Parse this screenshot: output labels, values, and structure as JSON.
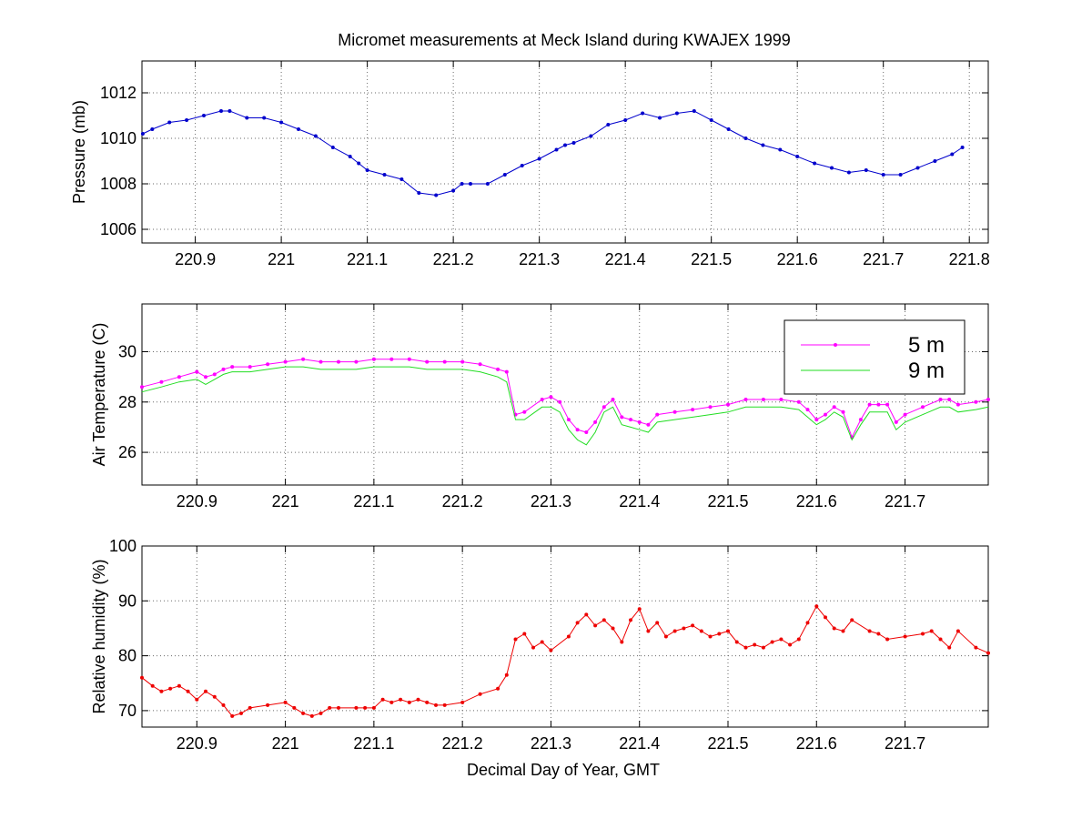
{
  "figure": {
    "title": "Micromet measurements at Meck Island during KWAJEX 1999"
  },
  "chart_data": [
    {
      "type": "line",
      "title": "Micromet measurements at Meck Island during KWAJEX 1999",
      "xlabel": "",
      "ylabel": "Pressure (mb)",
      "xlim": [
        220.838,
        221.822
      ],
      "ylim": [
        1005.4,
        1013.4
      ],
      "xticks": [
        220.9,
        221.0,
        221.1,
        221.2,
        221.3,
        221.4,
        221.5,
        221.6,
        221.7,
        221.8
      ],
      "xtick_labels": [
        "220.9",
        "221",
        "221.1",
        "221.2",
        "221.3",
        "221.4",
        "221.5",
        "221.6",
        "221.7",
        "221.8"
      ],
      "yticks": [
        1006,
        1008,
        1010,
        1012
      ],
      "ytick_labels": [
        "1006",
        "1008",
        "1010",
        "1012"
      ],
      "grid": true,
      "series": [
        {
          "color": "#0000cc",
          "marker": "dot",
          "x": [
            220.839,
            220.85,
            220.87,
            220.89,
            220.91,
            220.93,
            220.94,
            220.96,
            220.98,
            221.0,
            221.02,
            221.04,
            221.06,
            221.08,
            221.09,
            221.1,
            221.12,
            221.14,
            221.16,
            221.18,
            221.2,
            221.21,
            221.22,
            221.24,
            221.26,
            221.28,
            221.3,
            221.32,
            221.33,
            221.34,
            221.36,
            221.38,
            221.4,
            221.42,
            221.44,
            221.46,
            221.48,
            221.5,
            221.52,
            221.54,
            221.56,
            221.58,
            221.6,
            221.62,
            221.64,
            221.66,
            221.68,
            221.7,
            221.72,
            221.74,
            221.76,
            221.78,
            221.792
          ],
          "y": [
            1010.2,
            1010.4,
            1010.7,
            1010.8,
            1011.0,
            1011.2,
            1011.2,
            1010.9,
            1010.9,
            1010.7,
            1010.4,
            1010.1,
            1009.6,
            1009.2,
            1008.9,
            1008.6,
            1008.4,
            1008.2,
            1007.6,
            1007.5,
            1007.7,
            1008.0,
            1008.0,
            1008.0,
            1008.4,
            1008.8,
            1009.1,
            1009.5,
            1009.7,
            1009.8,
            1010.1,
            1010.6,
            1010.8,
            1011.1,
            1010.9,
            1011.1,
            1011.2,
            1010.8,
            1010.4,
            1010.0,
            1009.7,
            1009.5,
            1009.2,
            1008.9,
            1008.7,
            1008.5,
            1008.6,
            1008.4,
            1008.4,
            1008.7,
            1009.0,
            1009.3,
            1009.6
          ]
        }
      ]
    },
    {
      "type": "line",
      "xlabel": "",
      "ylabel": "Air Temperature (C)",
      "xlim": [
        220.838,
        221.794
      ],
      "ylim": [
        24.7,
        31.9
      ],
      "xticks": [
        220.9,
        221.0,
        221.1,
        221.2,
        221.3,
        221.4,
        221.5,
        221.6,
        221.7
      ],
      "xtick_labels": [
        "220.9",
        "221",
        "221.1",
        "221.2",
        "221.3",
        "221.4",
        "221.5",
        "221.6",
        "221.7"
      ],
      "yticks": [
        26,
        28,
        30
      ],
      "ytick_labels": [
        "26",
        "28",
        "30"
      ],
      "grid": true,
      "legend": "top-right",
      "series": [
        {
          "name": "5 m",
          "color": "#ff00ff",
          "marker": "dot",
          "x": [
            220.838,
            220.86,
            220.88,
            220.9,
            220.91,
            220.92,
            220.93,
            220.94,
            220.96,
            220.98,
            221.0,
            221.02,
            221.04,
            221.06,
            221.08,
            221.1,
            221.12,
            221.14,
            221.16,
            221.18,
            221.2,
            221.22,
            221.24,
            221.25,
            221.26,
            221.27,
            221.29,
            221.3,
            221.31,
            221.32,
            221.33,
            221.34,
            221.35,
            221.36,
            221.37,
            221.38,
            221.39,
            221.4,
            221.41,
            221.42,
            221.44,
            221.46,
            221.48,
            221.5,
            221.52,
            221.54,
            221.56,
            221.58,
            221.59,
            221.6,
            221.61,
            221.62,
            221.63,
            221.64,
            221.65,
            221.66,
            221.67,
            221.68,
            221.69,
            221.7,
            221.72,
            221.74,
            221.75,
            221.76,
            221.78,
            221.794
          ],
          "y": [
            28.6,
            28.8,
            29.0,
            29.2,
            29.0,
            29.1,
            29.3,
            29.4,
            29.4,
            29.5,
            29.6,
            29.7,
            29.6,
            29.6,
            29.6,
            29.7,
            29.7,
            29.7,
            29.6,
            29.6,
            29.6,
            29.5,
            29.3,
            29.2,
            27.5,
            27.6,
            28.1,
            28.2,
            28.0,
            27.3,
            26.9,
            26.8,
            27.2,
            27.8,
            28.1,
            27.4,
            27.3,
            27.2,
            27.1,
            27.5,
            27.6,
            27.7,
            27.8,
            27.9,
            28.1,
            28.1,
            28.1,
            28.0,
            27.7,
            27.3,
            27.5,
            27.8,
            27.6,
            26.6,
            27.3,
            27.9,
            27.9,
            27.9,
            27.2,
            27.5,
            27.8,
            28.1,
            28.1,
            27.9,
            28.0,
            28.1
          ]
        },
        {
          "name": "9 m",
          "color": "#22dd22",
          "marker": "none",
          "x": [
            220.838,
            220.86,
            220.88,
            220.9,
            220.91,
            220.92,
            220.93,
            220.94,
            220.96,
            220.98,
            221.0,
            221.02,
            221.04,
            221.06,
            221.08,
            221.1,
            221.12,
            221.14,
            221.16,
            221.18,
            221.2,
            221.22,
            221.24,
            221.25,
            221.26,
            221.27,
            221.29,
            221.3,
            221.31,
            221.32,
            221.33,
            221.34,
            221.35,
            221.36,
            221.37,
            221.38,
            221.39,
            221.4,
            221.41,
            221.42,
            221.44,
            221.46,
            221.48,
            221.5,
            221.52,
            221.54,
            221.56,
            221.58,
            221.59,
            221.6,
            221.61,
            221.62,
            221.63,
            221.64,
            221.65,
            221.66,
            221.67,
            221.68,
            221.69,
            221.7,
            221.72,
            221.74,
            221.75,
            221.76,
            221.78,
            221.794
          ],
          "y": [
            28.4,
            28.6,
            28.8,
            28.9,
            28.7,
            28.9,
            29.1,
            29.2,
            29.2,
            29.3,
            29.4,
            29.4,
            29.3,
            29.3,
            29.3,
            29.4,
            29.4,
            29.4,
            29.3,
            29.3,
            29.3,
            29.2,
            29.0,
            28.8,
            27.3,
            27.3,
            27.8,
            27.8,
            27.6,
            26.9,
            26.5,
            26.3,
            26.8,
            27.6,
            27.8,
            27.1,
            27.0,
            26.9,
            26.8,
            27.2,
            27.3,
            27.4,
            27.5,
            27.6,
            27.8,
            27.8,
            27.8,
            27.7,
            27.4,
            27.1,
            27.3,
            27.6,
            27.4,
            26.5,
            27.1,
            27.6,
            27.6,
            27.6,
            26.9,
            27.2,
            27.5,
            27.8,
            27.8,
            27.6,
            27.7,
            27.8
          ]
        }
      ]
    },
    {
      "type": "line",
      "xlabel": "Decimal Day of Year, GMT",
      "ylabel": "Relative humidity (%)",
      "xlim": [
        220.838,
        221.794
      ],
      "ylim": [
        67,
        100
      ],
      "xticks": [
        220.9,
        221.0,
        221.1,
        221.2,
        221.3,
        221.4,
        221.5,
        221.6,
        221.7
      ],
      "xtick_labels": [
        "220.9",
        "221",
        "221.1",
        "221.2",
        "221.3",
        "221.4",
        "221.5",
        "221.6",
        "221.7"
      ],
      "yticks": [
        70,
        80,
        90,
        100
      ],
      "ytick_labels": [
        "70",
        "80",
        "90",
        "100"
      ],
      "grid": true,
      "series": [
        {
          "color": "#ee0000",
          "marker": "dot",
          "x": [
            220.838,
            220.85,
            220.86,
            220.87,
            220.88,
            220.89,
            220.9,
            220.91,
            220.92,
            220.93,
            220.94,
            220.95,
            220.96,
            220.98,
            221.0,
            221.01,
            221.02,
            221.03,
            221.04,
            221.05,
            221.06,
            221.08,
            221.09,
            221.1,
            221.11,
            221.12,
            221.13,
            221.14,
            221.15,
            221.16,
            221.17,
            221.18,
            221.2,
            221.22,
            221.24,
            221.25,
            221.26,
            221.27,
            221.28,
            221.29,
            221.3,
            221.32,
            221.33,
            221.34,
            221.35,
            221.36,
            221.37,
            221.38,
            221.39,
            221.4,
            221.41,
            221.42,
            221.43,
            221.44,
            221.45,
            221.46,
            221.47,
            221.48,
            221.49,
            221.5,
            221.51,
            221.52,
            221.53,
            221.54,
            221.55,
            221.56,
            221.57,
            221.58,
            221.59,
            221.6,
            221.61,
            221.62,
            221.63,
            221.64,
            221.66,
            221.67,
            221.68,
            221.7,
            221.72,
            221.73,
            221.74,
            221.75,
            221.76,
            221.78,
            221.794
          ],
          "y": [
            76.0,
            74.5,
            73.5,
            74.0,
            74.5,
            73.5,
            72.0,
            73.5,
            72.5,
            71.0,
            69.0,
            69.5,
            70.5,
            71.0,
            71.5,
            70.5,
            69.5,
            69.0,
            69.5,
            70.5,
            70.5,
            70.5,
            70.5,
            70.5,
            72.0,
            71.5,
            72.0,
            71.5,
            72.0,
            71.5,
            71.0,
            71.0,
            71.5,
            73.0,
            74.0,
            76.5,
            83.0,
            84.0,
            81.5,
            82.5,
            81.0,
            83.5,
            86.0,
            87.5,
            85.5,
            86.5,
            85.0,
            82.5,
            86.5,
            88.5,
            84.5,
            86.0,
            83.5,
            84.5,
            85.0,
            85.5,
            84.5,
            83.5,
            84.0,
            84.5,
            82.5,
            81.5,
            82.0,
            81.5,
            82.5,
            83.0,
            82.0,
            83.0,
            86.0,
            89.0,
            87.0,
            85.0,
            84.5,
            86.5,
            84.5,
            84.0,
            83.0,
            83.5,
            84.0,
            84.5,
            83.0,
            81.5,
            84.5,
            81.5,
            80.5
          ]
        }
      ]
    }
  ]
}
